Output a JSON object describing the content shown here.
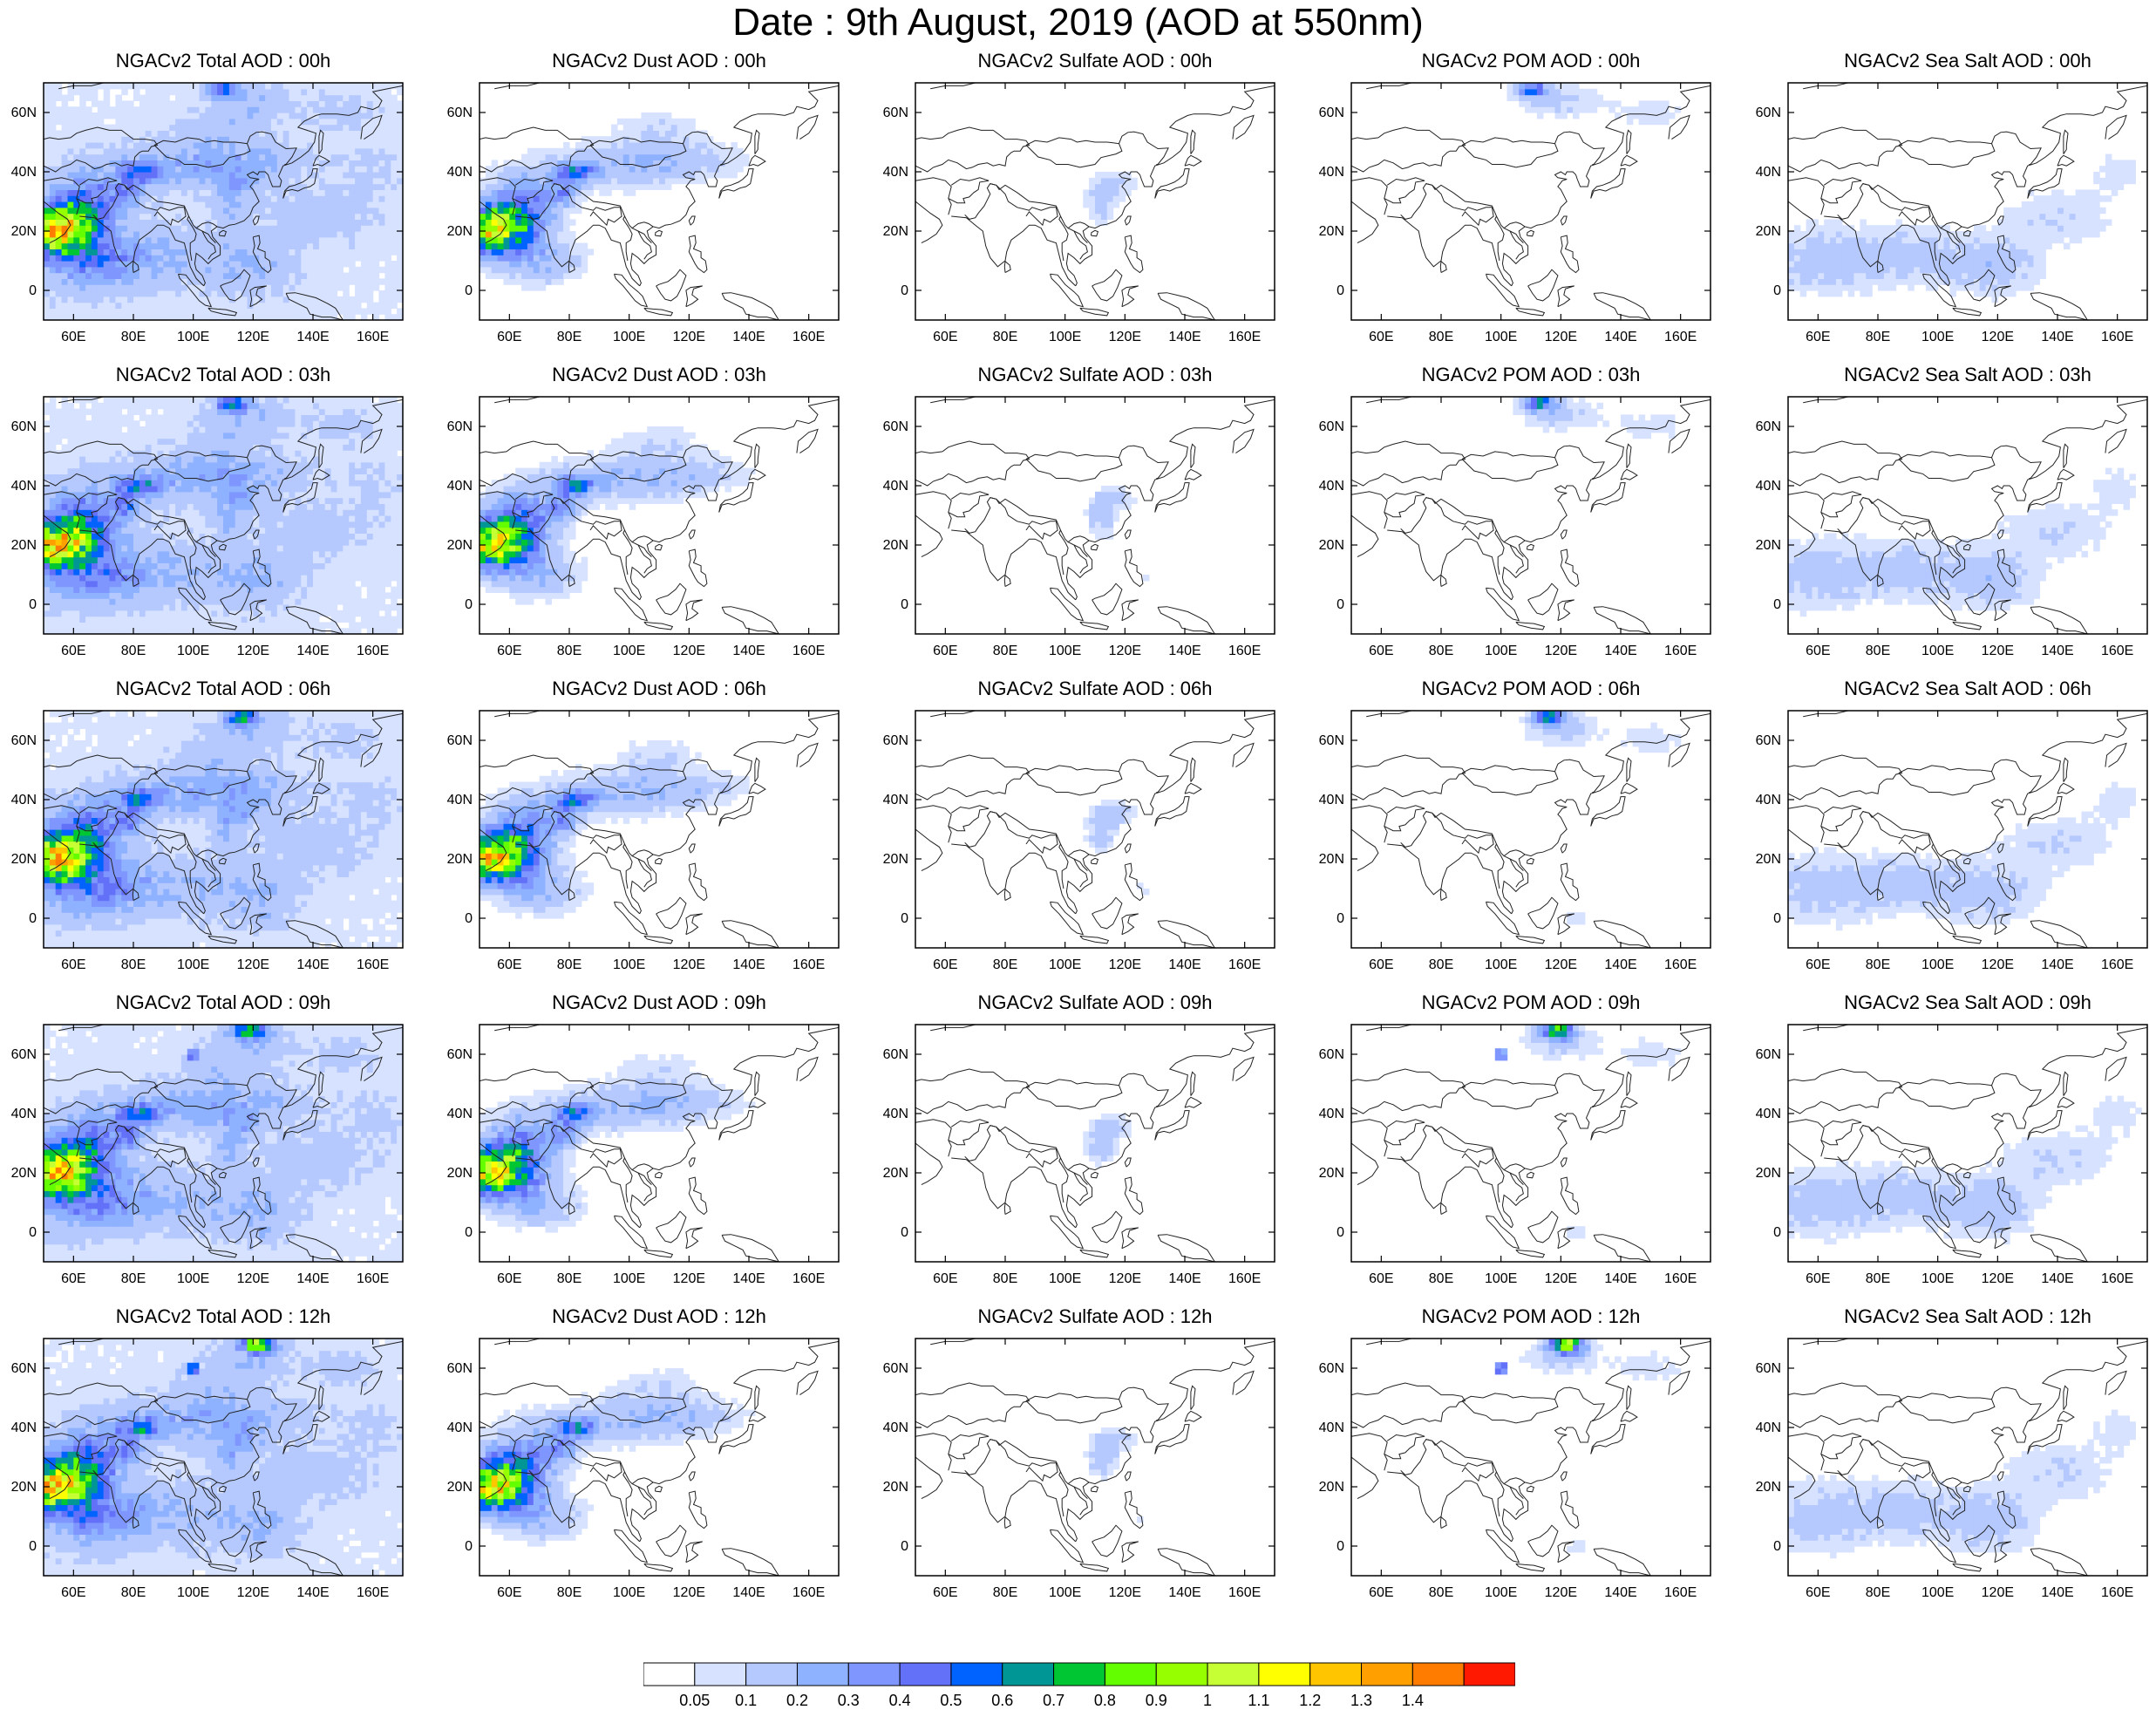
{
  "title": "Date : 9th August, 2019 (AOD at 550nm)",
  "panel_titles": [
    [
      "NGACv2 Total AOD : 00h",
      "NGACv2 Dust AOD : 00h",
      "NGACv2 Sulfate AOD : 00h",
      "NGACv2 POM AOD : 00h",
      "NGACv2 Sea Salt AOD : 00h"
    ],
    [
      "NGACv2 Total AOD : 03h",
      "NGACv2 Dust AOD : 03h",
      "NGACv2 Sulfate AOD : 03h",
      "NGACv2 POM AOD : 03h",
      "NGACv2 Sea Salt AOD : 03h"
    ],
    [
      "NGACv2 Total AOD : 06h",
      "NGACv2 Dust AOD : 06h",
      "NGACv2 Sulfate AOD : 06h",
      "NGACv2 POM AOD : 06h",
      "NGACv2 Sea Salt AOD : 06h"
    ],
    [
      "NGACv2 Total AOD : 09h",
      "NGACv2 Dust AOD : 09h",
      "NGACv2 Sulfate AOD : 09h",
      "NGACv2 POM AOD : 09h",
      "NGACv2 Sea Salt  AOD : 09h"
    ],
    [
      "NGACv2 Total AOD  : 12h",
      "NGACv2 Dust AOD : 12h",
      "NGACv2 Sulfate AOD : 12h",
      "NGACv2 POM  AOD : 12h",
      "NGACv2 Sea Salt  AOD : 12h"
    ]
  ],
  "lat_labels": [
    "60N",
    "40N",
    "20N",
    "0"
  ],
  "lat_values": [
    60,
    40,
    20,
    0
  ],
  "lon_labels": [
    "60E",
    "80E",
    "100E",
    "120E",
    "140E",
    "160E"
  ],
  "lon_values": [
    60,
    80,
    100,
    120,
    140,
    160
  ],
  "lon_range": [
    50,
    170
  ],
  "lat_range": [
    -10,
    70
  ],
  "colorbar": {
    "labels": [
      "0.05",
      "0.1",
      "0.2",
      "0.3",
      "0.4",
      "0.5",
      "0.6",
      "0.7",
      "0.8",
      "0.9",
      "1",
      "1.1",
      "1.2",
      "1.3",
      "1.4"
    ],
    "colors": [
      "#ffffff",
      "#d6e2ff",
      "#b5c9ff",
      "#8eb2ff",
      "#7f96ff",
      "#6370f8",
      "#0063ff",
      "#009696",
      "#00c633",
      "#63ff00",
      "#96ff00",
      "#c6ff33",
      "#ffff00",
      "#ffc600",
      "#ffa000",
      "#ff7c00",
      "#ff1900"
    ]
  }
}
